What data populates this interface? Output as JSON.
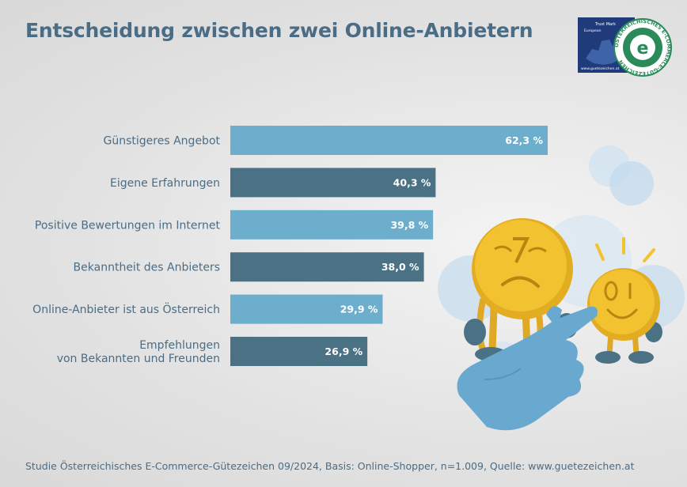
{
  "title": "Entscheidung zwischen zwei Online-Anbietern",
  "footer": "Studie Österreichisches E-Commerce-Gütezeichen 09/2024, Basis: Online-Shopper, n=1.009, Quelle: www.guetezeichen.at",
  "logo": {
    "ring_text": "ÖSTERREICHISCHES E-COMMERCE-GÜTEZEICHEN",
    "trust_text_1": "Trust Mark",
    "trust_text_2": "European",
    "url": "www.guetezeichen.at",
    "colors": {
      "navy": "#1f3b7a",
      "green": "#2b8a5a"
    }
  },
  "colors": {
    "light_bar": "#6eaecd",
    "dark_bar": "#4b7185",
    "text": "#4a6c84",
    "coin": "#f2c230",
    "hand": "#6aa9cf"
  },
  "chart_data": {
    "type": "bar",
    "orientation": "horizontal",
    "title": "Entscheidung zwischen zwei Online-Anbietern",
    "xlabel": "",
    "ylabel": "",
    "xlim": [
      0,
      100
    ],
    "unit": "%",
    "categories": [
      [
        "Günstigeres Angebot"
      ],
      [
        "Eigene Erfahrungen"
      ],
      [
        "Positive Bewertungen im Internet"
      ],
      [
        "Bekanntheit des Anbieters"
      ],
      [
        "Online-Anbieter ist aus Österreich"
      ],
      [
        "Empfehlungen",
        "von Bekannten und Freunden"
      ]
    ],
    "values": [
      62.3,
      40.3,
      39.8,
      38.0,
      29.9,
      26.9
    ],
    "value_labels": [
      "62,3 %",
      "40,3 %",
      "39,8 %",
      "38,0 %",
      "29,9 %",
      "26,9 %"
    ]
  }
}
